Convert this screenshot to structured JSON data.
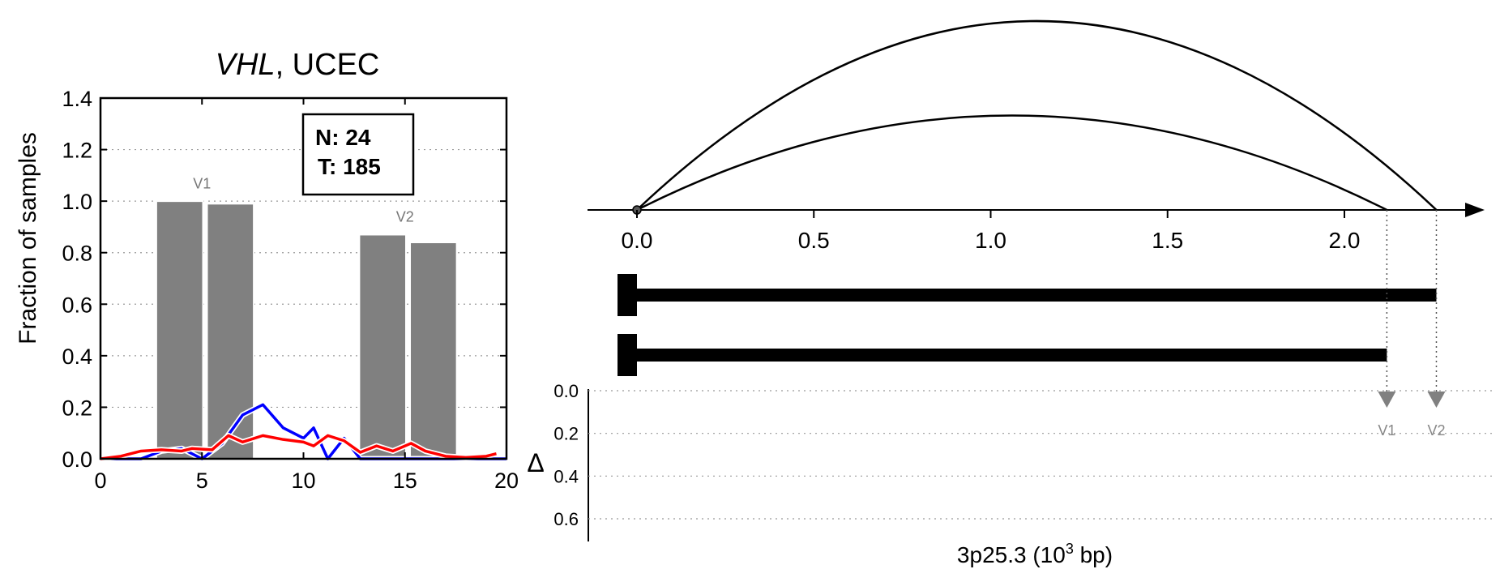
{
  "chart_data": [
    {
      "type": "bar",
      "title_gene": "VHL",
      "title_rest": ", UCEC",
      "ylabel": "Fraction of samples",
      "xlim": [
        0,
        20
      ],
      "ylim": [
        0,
        1.4
      ],
      "grid": "horizontal dotted",
      "xticks": [
        "0",
        "5",
        "10",
        "15",
        "20"
      ],
      "yticks": [
        "0.0",
        "0.2",
        "0.4",
        "0.6",
        "0.8",
        "1.0",
        "1.2",
        "1.4"
      ],
      "legend_box": {
        "n_label": "N: 24",
        "t_label": "T: 185",
        "placement": "top-right"
      },
      "bars": [
        {
          "x": 3.9,
          "value": 1.0,
          "group": "V1"
        },
        {
          "x": 6.4,
          "value": 0.99,
          "group": "V1"
        },
        {
          "x": 13.9,
          "value": 0.87,
          "group": "V2"
        },
        {
          "x": 16.4,
          "value": 0.84,
          "group": "V2"
        }
      ],
      "bar_width": 2.3,
      "bar_labels": [
        {
          "text": "V1",
          "x": 5.0,
          "y": 1.05
        },
        {
          "text": "V2",
          "x": 15.0,
          "y": 0.92
        }
      ],
      "series": [
        {
          "color": "#0000ff",
          "values": [
            [
              0,
              0
            ],
            [
              1,
              0
            ],
            [
              2,
              0
            ],
            [
              3,
              0.03
            ],
            [
              4,
              0.04
            ],
            [
              5,
              0
            ],
            [
              6,
              0.06
            ],
            [
              7,
              0.17
            ],
            [
              8,
              0.21
            ],
            [
              9,
              0.12
            ],
            [
              10,
              0.08
            ],
            [
              10.5,
              0.12
            ],
            [
              11.2,
              0
            ],
            [
              12,
              0.08
            ],
            [
              12.8,
              0
            ],
            [
              20,
              0
            ]
          ]
        },
        {
          "color": "#ff0000",
          "values": [
            [
              0,
              0
            ],
            [
              1,
              0.01
            ],
            [
              2,
              0.03
            ],
            [
              3,
              0.035
            ],
            [
              4,
              0.03
            ],
            [
              4.5,
              0.04
            ],
            [
              5.5,
              0.035
            ],
            [
              6.3,
              0.09
            ],
            [
              7,
              0.065
            ],
            [
              8,
              0.09
            ],
            [
              9,
              0.075
            ],
            [
              10,
              0.065
            ],
            [
              10.5,
              0.05
            ],
            [
              11.2,
              0.09
            ],
            [
              12,
              0.07
            ],
            [
              12.8,
              0.025
            ],
            [
              13.6,
              0.05
            ],
            [
              14.4,
              0.03
            ],
            [
              15.3,
              0.06
            ],
            [
              16,
              0.03
            ],
            [
              17,
              0.01
            ],
            [
              18,
              0.005
            ],
            [
              19,
              0.01
            ],
            [
              19.5,
              0.02
            ]
          ]
        }
      ],
      "bar_color": "#808080"
    },
    {
      "type": "line",
      "xlabel_main": "3p25.3 (10",
      "xlabel_sup": "3",
      "xlabel_end": " bp)",
      "xlim": [
        0,
        2.4
      ],
      "xticks": [
        "0.0",
        "0.5",
        "1.0",
        "1.5",
        "2.0"
      ],
      "arcs": [
        {
          "from": 0,
          "to": 2.26,
          "peak_height": 1.0
        },
        {
          "from": 0,
          "to": 2.12,
          "peak_height": 0.5
        }
      ],
      "isoforms": [
        {
          "start": 0,
          "end": 2.26
        },
        {
          "start": 0,
          "end": 2.12
        }
      ],
      "delta_label": "Δ",
      "delta_ylim": [
        0,
        0.6
      ],
      "delta_yticks": [
        "0.0",
        "0.2",
        "0.4",
        "0.6"
      ],
      "variants": [
        {
          "label": "V1",
          "position": 2.12,
          "delta": 0.0
        },
        {
          "label": "V2",
          "position": 2.26,
          "delta": 0.0
        }
      ],
      "marker_color": "#808080"
    }
  ]
}
